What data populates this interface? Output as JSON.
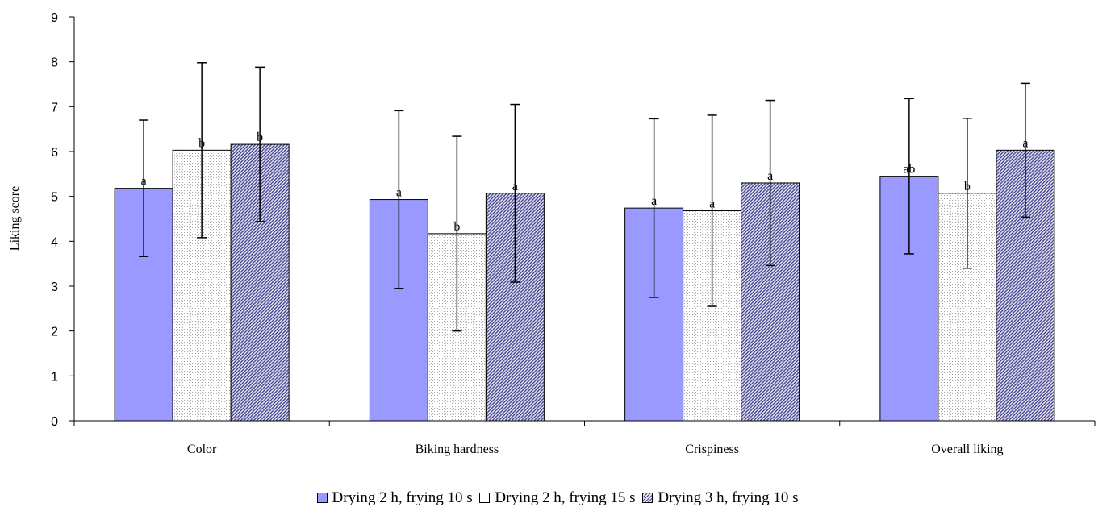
{
  "chart_data": {
    "type": "bar",
    "title": "",
    "xlabel": "",
    "ylabel": "Liking score",
    "ylim": [
      0,
      9
    ],
    "yticks": [
      0,
      1,
      2,
      3,
      4,
      5,
      6,
      7,
      8,
      9
    ],
    "grid": false,
    "legend_position": "bottom",
    "categories": [
      "Color",
      "Biking hardness",
      "Crispiness",
      "Overall liking"
    ],
    "series": [
      {
        "name": "Drying 2 h, frying 10 s",
        "pattern": "solid",
        "color": "#9999ff",
        "values": [
          5.18,
          4.93,
          4.74,
          5.45
        ],
        "error": [
          1.52,
          1.98,
          1.99,
          1.73
        ],
        "labels": [
          "a",
          "a",
          "a",
          "ab"
        ]
      },
      {
        "name": "Drying 2 h, frying 15 s",
        "pattern": "dotted",
        "color": "#ffffff",
        "values": [
          6.03,
          4.17,
          4.68,
          5.07
        ],
        "error": [
          1.95,
          2.17,
          2.13,
          1.67
        ],
        "labels": [
          "b",
          "b",
          "a",
          "b"
        ]
      },
      {
        "name": "Drying 3 h, frying 10 s",
        "pattern": "diagonal-hatch",
        "color": "#6b6bb8",
        "values": [
          6.16,
          5.07,
          5.3,
          6.03
        ],
        "error": [
          1.72,
          1.98,
          1.84,
          1.49
        ],
        "labels": [
          "b",
          "a",
          "a",
          "a"
        ]
      }
    ]
  }
}
